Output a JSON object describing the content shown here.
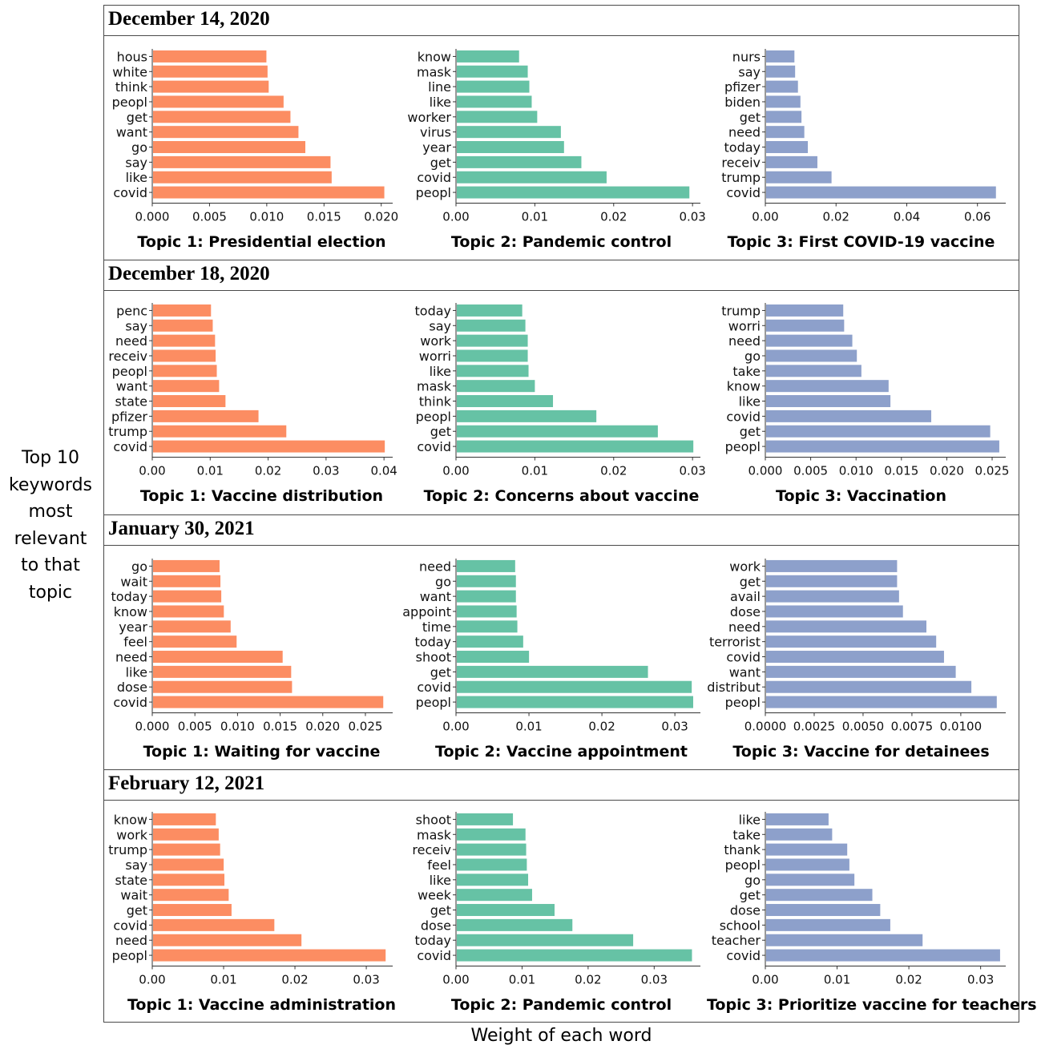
{
  "page": {
    "y_axis_label_lines": [
      "Top 10",
      "keywords",
      "most",
      "relevant",
      "to that",
      "topic"
    ],
    "x_axis_label": "Weight of each word",
    "colors": {
      "topic1": "#fc8d62",
      "topic2": "#66c2a5",
      "topic3": "#8da0cb",
      "frame": "#4a4a4a"
    }
  },
  "sections": [
    {
      "date": "December 14, 2020"
    },
    {
      "date": "December 18, 2020"
    },
    {
      "date": "January 30, 2021"
    },
    {
      "date": "February 12, 2021"
    }
  ],
  "chart_data": [
    {
      "type": "bar",
      "orientation": "horizontal",
      "section": "December 14, 2020",
      "title": "Topic 1: Presidential election",
      "color": "#fc8d62",
      "categories": [
        "hous",
        "white",
        "think",
        "peopl",
        "get",
        "want",
        "go",
        "say",
        "like",
        "covid"
      ],
      "values": [
        0.0099,
        0.01,
        0.0101,
        0.0114,
        0.012,
        0.0127,
        0.0133,
        0.0155,
        0.0156,
        0.0202
      ],
      "xlim": [
        0,
        0.021
      ],
      "ticks": [
        0.0,
        0.005,
        0.01,
        0.015,
        0.02
      ],
      "tick_labels": [
        "0.000",
        "0.005",
        "0.010",
        "0.015",
        "0.020"
      ]
    },
    {
      "type": "bar",
      "orientation": "horizontal",
      "section": "December 14, 2020",
      "title": "Topic 2: Pandemic control",
      "color": "#66c2a5",
      "categories": [
        "know",
        "mask",
        "line",
        "like",
        "worker",
        "virus",
        "year",
        "get",
        "covid",
        "peopl"
      ],
      "values": [
        0.0079,
        0.009,
        0.0092,
        0.0095,
        0.0102,
        0.0132,
        0.0136,
        0.0158,
        0.019,
        0.0295
      ],
      "xlim": [
        0,
        0.031
      ],
      "ticks": [
        0.0,
        0.01,
        0.02,
        0.03
      ],
      "tick_labels": [
        "0.00",
        "0.01",
        "0.02",
        "0.03"
      ]
    },
    {
      "type": "bar",
      "orientation": "horizontal",
      "section": "December 14, 2020",
      "title": "Topic 3: First COVID-19 vaccine",
      "color": "#8da0cb",
      "categories": [
        "nurs",
        "say",
        "pfizer",
        "biden",
        "get",
        "need",
        "today",
        "receiv",
        "trump",
        "covid"
      ],
      "values": [
        0.008,
        0.0082,
        0.009,
        0.0097,
        0.01,
        0.0108,
        0.0118,
        0.0145,
        0.0185,
        0.065
      ],
      "xlim": [
        0,
        0.068
      ],
      "ticks": [
        0.0,
        0.02,
        0.04,
        0.06
      ],
      "tick_labels": [
        "0.00",
        "0.02",
        "0.04",
        "0.06"
      ]
    },
    {
      "type": "bar",
      "orientation": "horizontal",
      "section": "December 18, 2020",
      "title": "Topic 1: Vaccine distribution",
      "color": "#fc8d62",
      "categories": [
        "penc",
        "say",
        "need",
        "receiv",
        "peopl",
        "want",
        "state",
        "pfizer",
        "trump",
        "covid"
      ],
      "values": [
        0.01,
        0.0103,
        0.0107,
        0.0108,
        0.011,
        0.0114,
        0.0125,
        0.0182,
        0.023,
        0.04
      ],
      "xlim": [
        0,
        0.0415
      ],
      "ticks": [
        0.0,
        0.01,
        0.02,
        0.03,
        0.04
      ],
      "tick_labels": [
        "0.00",
        "0.01",
        "0.02",
        "0.03",
        "0.04"
      ]
    },
    {
      "type": "bar",
      "orientation": "horizontal",
      "section": "December 18, 2020",
      "title": "Topic 2: Concerns about vaccine",
      "color": "#66c2a5",
      "categories": [
        "today",
        "say",
        "work",
        "worri",
        "like",
        "mask",
        "think",
        "peopl",
        "get",
        "covid"
      ],
      "values": [
        0.0083,
        0.0087,
        0.009,
        0.009,
        0.0091,
        0.0099,
        0.0122,
        0.0177,
        0.0255,
        0.03
      ],
      "xlim": [
        0,
        0.031
      ],
      "ticks": [
        0.0,
        0.01,
        0.02,
        0.03
      ],
      "tick_labels": [
        "0.00",
        "0.01",
        "0.02",
        "0.03"
      ]
    },
    {
      "type": "bar",
      "orientation": "horizontal",
      "section": "December 18, 2020",
      "title": "Topic 3: Vaccination",
      "color": "#8da0cb",
      "categories": [
        "trump",
        "worri",
        "need",
        "go",
        "take",
        "know",
        "like",
        "covid",
        "get",
        "peopl"
      ],
      "values": [
        0.0085,
        0.0086,
        0.0095,
        0.01,
        0.0105,
        0.0135,
        0.0137,
        0.0182,
        0.0247,
        0.0257
      ],
      "xlim": [
        0,
        0.0265
      ],
      "ticks": [
        0.0,
        0.005,
        0.01,
        0.015,
        0.02,
        0.025
      ],
      "tick_labels": [
        "0.000",
        "0.005",
        "0.010",
        "0.015",
        "0.020",
        "0.025"
      ]
    },
    {
      "type": "bar",
      "orientation": "horizontal",
      "section": "January 30, 2021",
      "title": "Topic 1: Waiting for vaccine",
      "color": "#fc8d62",
      "categories": [
        "go",
        "wait",
        "today",
        "know",
        "year",
        "feel",
        "need",
        "like",
        "dose",
        "covid"
      ],
      "values": [
        0.0078,
        0.0079,
        0.008,
        0.0083,
        0.0091,
        0.0098,
        0.0152,
        0.0162,
        0.0163,
        0.027
      ],
      "xlim": [
        0,
        0.0282
      ],
      "ticks": [
        0.0,
        0.005,
        0.01,
        0.015,
        0.02,
        0.025
      ],
      "tick_labels": [
        "0.000",
        "0.005",
        "0.010",
        "0.015",
        "0.020",
        "0.025"
      ]
    },
    {
      "type": "bar",
      "orientation": "horizontal",
      "section": "January 30, 2021",
      "title": "Topic 2: Vaccine appointment",
      "color": "#66c2a5",
      "categories": [
        "need",
        "go",
        "want",
        "appoint",
        "time",
        "today",
        "shoot",
        "get",
        "covid",
        "peopl"
      ],
      "values": [
        0.008,
        0.0081,
        0.0081,
        0.0082,
        0.0083,
        0.0091,
        0.0099,
        0.0262,
        0.0322,
        0.0324
      ],
      "xlim": [
        0,
        0.0335
      ],
      "ticks": [
        0.0,
        0.01,
        0.02,
        0.03
      ],
      "tick_labels": [
        "0.00",
        "0.01",
        "0.02",
        "0.03"
      ]
    },
    {
      "type": "bar",
      "orientation": "horizontal",
      "section": "January 30, 2021",
      "title": "Topic 3: Vaccine for detainees",
      "color": "#8da0cb",
      "categories": [
        "work",
        "get",
        "avail",
        "dose",
        "need",
        "terrorist",
        "covid",
        "want",
        "distribut",
        "peopl"
      ],
      "values": [
        0.0067,
        0.0067,
        0.0068,
        0.007,
        0.0082,
        0.0087,
        0.0091,
        0.0097,
        0.0105,
        0.0118
      ],
      "xlim": [
        0,
        0.0123
      ],
      "ticks": [
        0.0,
        0.0025,
        0.005,
        0.0075,
        0.01
      ],
      "tick_labels": [
        "0.0000",
        "0.0025",
        "0.0050",
        "0.0075",
        "0.0100"
      ]
    },
    {
      "type": "bar",
      "orientation": "horizontal",
      "section": "February 12, 2021",
      "title": "Topic 1: Vaccine administration",
      "color": "#fc8d62",
      "categories": [
        "know",
        "work",
        "trump",
        "say",
        "state",
        "wait",
        "get",
        "covid",
        "need",
        "peopl"
      ],
      "values": [
        0.0088,
        0.0092,
        0.0094,
        0.0099,
        0.01,
        0.0106,
        0.011,
        0.017,
        0.0208,
        0.0326
      ],
      "xlim": [
        0,
        0.0337
      ],
      "ticks": [
        0.0,
        0.01,
        0.02,
        0.03
      ],
      "tick_labels": [
        "0.00",
        "0.01",
        "0.02",
        "0.03"
      ]
    },
    {
      "type": "bar",
      "orientation": "horizontal",
      "section": "February 12, 2021",
      "title": "Topic 2: Pandemic control",
      "color": "#66c2a5",
      "categories": [
        "shoot",
        "mask",
        "receiv",
        "feel",
        "like",
        "week",
        "get",
        "dose",
        "today",
        "covid"
      ],
      "values": [
        0.0085,
        0.0104,
        0.0105,
        0.0106,
        0.0108,
        0.0114,
        0.0148,
        0.0175,
        0.0267,
        0.0356
      ],
      "xlim": [
        0,
        0.037
      ],
      "ticks": [
        0.0,
        0.01,
        0.02,
        0.03
      ],
      "tick_labels": [
        "0.00",
        "0.01",
        "0.02",
        "0.03"
      ]
    },
    {
      "type": "bar",
      "orientation": "horizontal",
      "section": "February 12, 2021",
      "title": "Topic 3: Prioritize vaccine for teachers",
      "color": "#8da0cb",
      "categories": [
        "like",
        "take",
        "thank",
        "peopl",
        "go",
        "get",
        "dose",
        "school",
        "teacher",
        "covid"
      ],
      "values": [
        0.0087,
        0.0092,
        0.0113,
        0.0116,
        0.0123,
        0.0148,
        0.0159,
        0.0173,
        0.0218,
        0.0326
      ],
      "xlim": [
        0,
        0.0335
      ],
      "ticks": [
        0.0,
        0.01,
        0.02,
        0.03
      ],
      "tick_labels": [
        "0.00",
        "0.01",
        "0.02",
        "0.03"
      ]
    }
  ]
}
